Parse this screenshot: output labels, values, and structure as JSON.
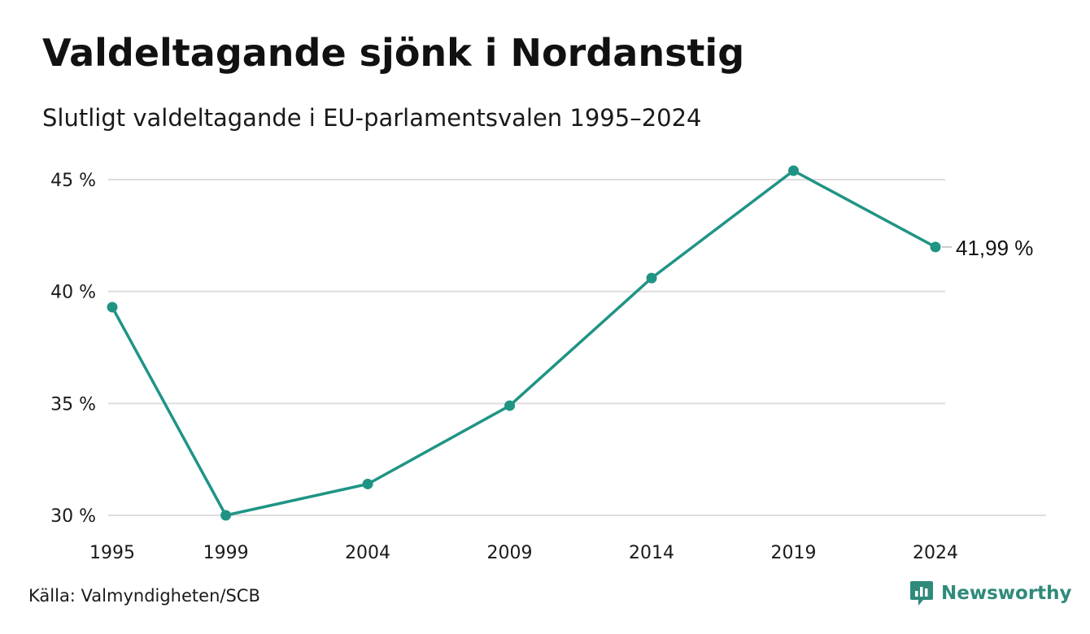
{
  "header": {
    "title": "Valdeltagande sjönk i Nordanstig",
    "subtitle": "Slutligt valdeltagande i EU-parlamentsvalen 1995–2024"
  },
  "footer": {
    "source": "Källa: Valmyndigheten/SCB",
    "brand_name": "Newsworthy",
    "brand_icon": "bar-chart-speech-bubble-icon"
  },
  "colors": {
    "line": "#1f9485",
    "grid": "#dddddd",
    "brand": "#2f8a7a"
  },
  "chart_data": {
    "type": "line",
    "title": "Valdeltagande sjönk i Nordanstig",
    "subtitle": "Slutligt valdeltagande i EU-parlamentsvalen 1995–2024",
    "xlabel": "",
    "ylabel": "",
    "x": [
      1995,
      1999,
      2004,
      2009,
      2014,
      2019,
      2024
    ],
    "x_tick_labels": [
      "1995",
      "1999",
      "2004",
      "2009",
      "2014",
      "2019",
      "2024"
    ],
    "series": [
      {
        "values": [
          39.3,
          30.0,
          31.4,
          34.9,
          40.6,
          45.4,
          41.99
        ]
      }
    ],
    "ylim": [
      30,
      45
    ],
    "y_ticks": [
      30,
      35,
      40,
      45
    ],
    "y_tick_labels": [
      "30 %",
      "35 %",
      "40 %",
      "45 %"
    ],
    "grid": true,
    "end_label": "41,99 %",
    "legend": "none"
  }
}
